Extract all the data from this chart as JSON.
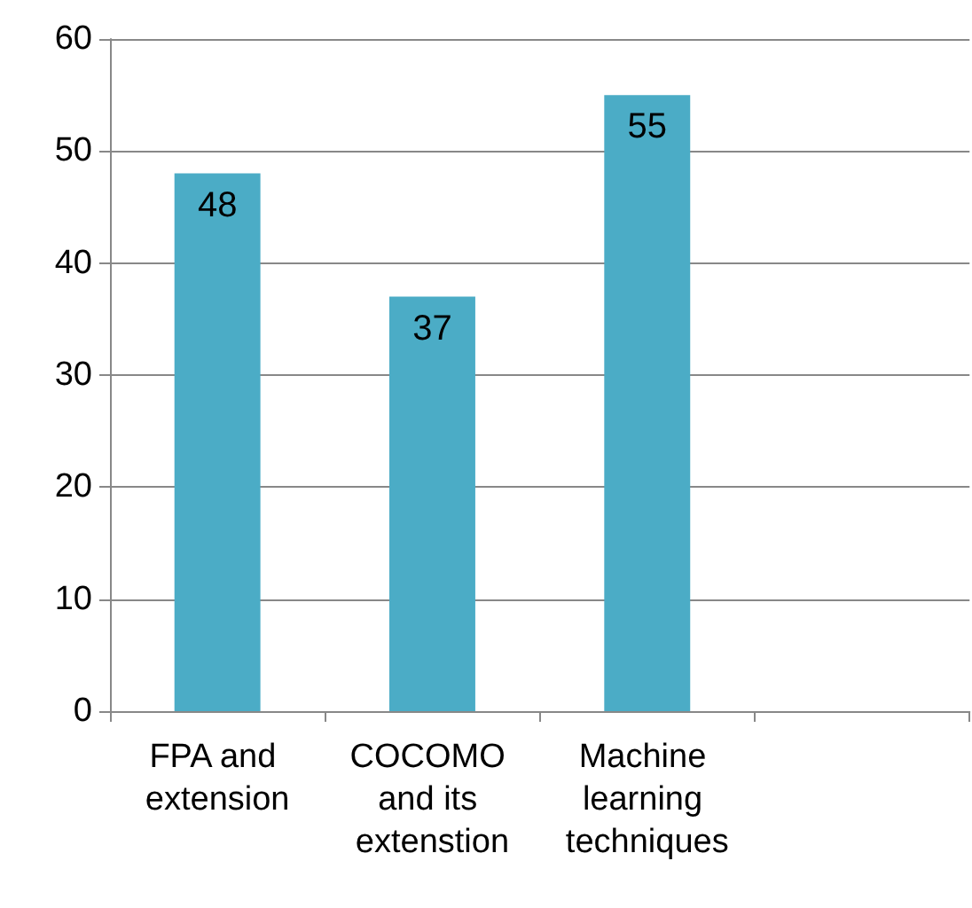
{
  "chart_data": {
    "type": "bar",
    "categories": [
      "FPA and extension",
      "COCOMO and its extenstion",
      "Machine learning techniques",
      null
    ],
    "values": [
      48,
      37,
      55,
      null
    ],
    "color": "#4bacc6",
    "data_labels": true,
    "ylim": [
      0,
      60
    ],
    "yticks": [
      0,
      10,
      20,
      30,
      40,
      50,
      60
    ],
    "grid": "y"
  }
}
